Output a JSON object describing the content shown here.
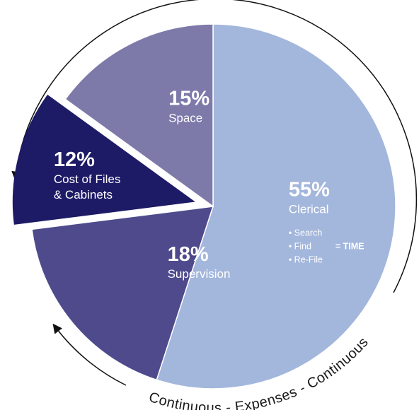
{
  "chart_data": {
    "type": "pie",
    "slices": [
      {
        "value": 55,
        "pct_label": "55%",
        "label_lines": [
          "Clerical"
        ],
        "color": "#a3b6dc",
        "notes": [
          "Search",
          "Find",
          "Re-File"
        ],
        "note_suffix": "= TIME"
      },
      {
        "value": 18,
        "pct_label": "18%",
        "label_lines": [
          "Supervision"
        ],
        "color": "#4e4a8c"
      },
      {
        "value": 12,
        "pct_label": "12%",
        "label_lines": [
          "Cost of Files",
          "& Cabinets"
        ],
        "color": "#1d1a66",
        "exploded": true
      },
      {
        "value": 15,
        "pct_label": "15%",
        "label_lines": [
          "Space"
        ],
        "color": "#7d7aaa"
      }
    ],
    "cycle_caption": "Continuous - Expenses - Continuous",
    "arrow_direction": "counterclockwise"
  }
}
